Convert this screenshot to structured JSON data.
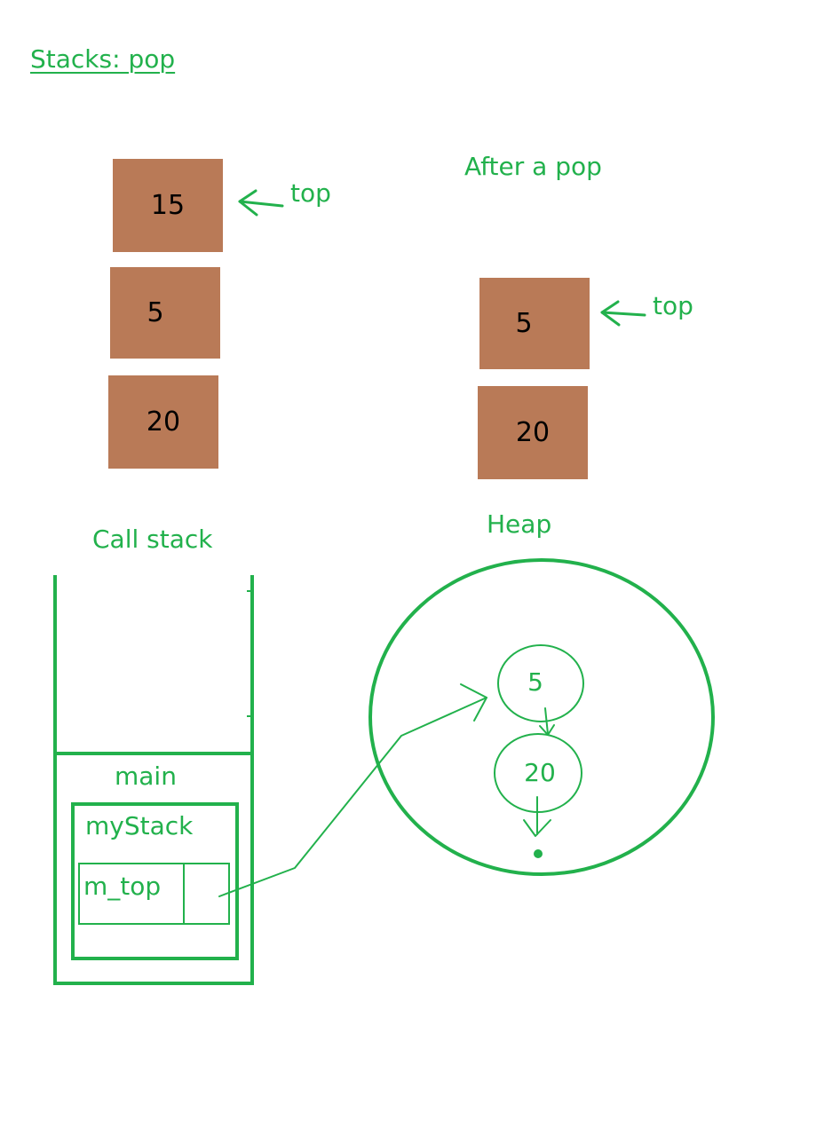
{
  "colors": {
    "accent": "#22b14c",
    "box_fill": "#b97a57",
    "box_text": "#000000",
    "background": "#ffffff"
  },
  "title": "Stacks: pop",
  "before": {
    "boxes": [
      "15",
      "5",
      "20"
    ],
    "top_label": "top"
  },
  "after": {
    "heading": "After a pop",
    "boxes": [
      "5",
      "20"
    ],
    "top_label": "top"
  },
  "call_stack": {
    "heading": "Call stack",
    "frame_label": "main",
    "object_label": "myStack",
    "field_label": "m_top"
  },
  "heap": {
    "heading": "Heap",
    "nodes": [
      "5",
      "20"
    ]
  }
}
